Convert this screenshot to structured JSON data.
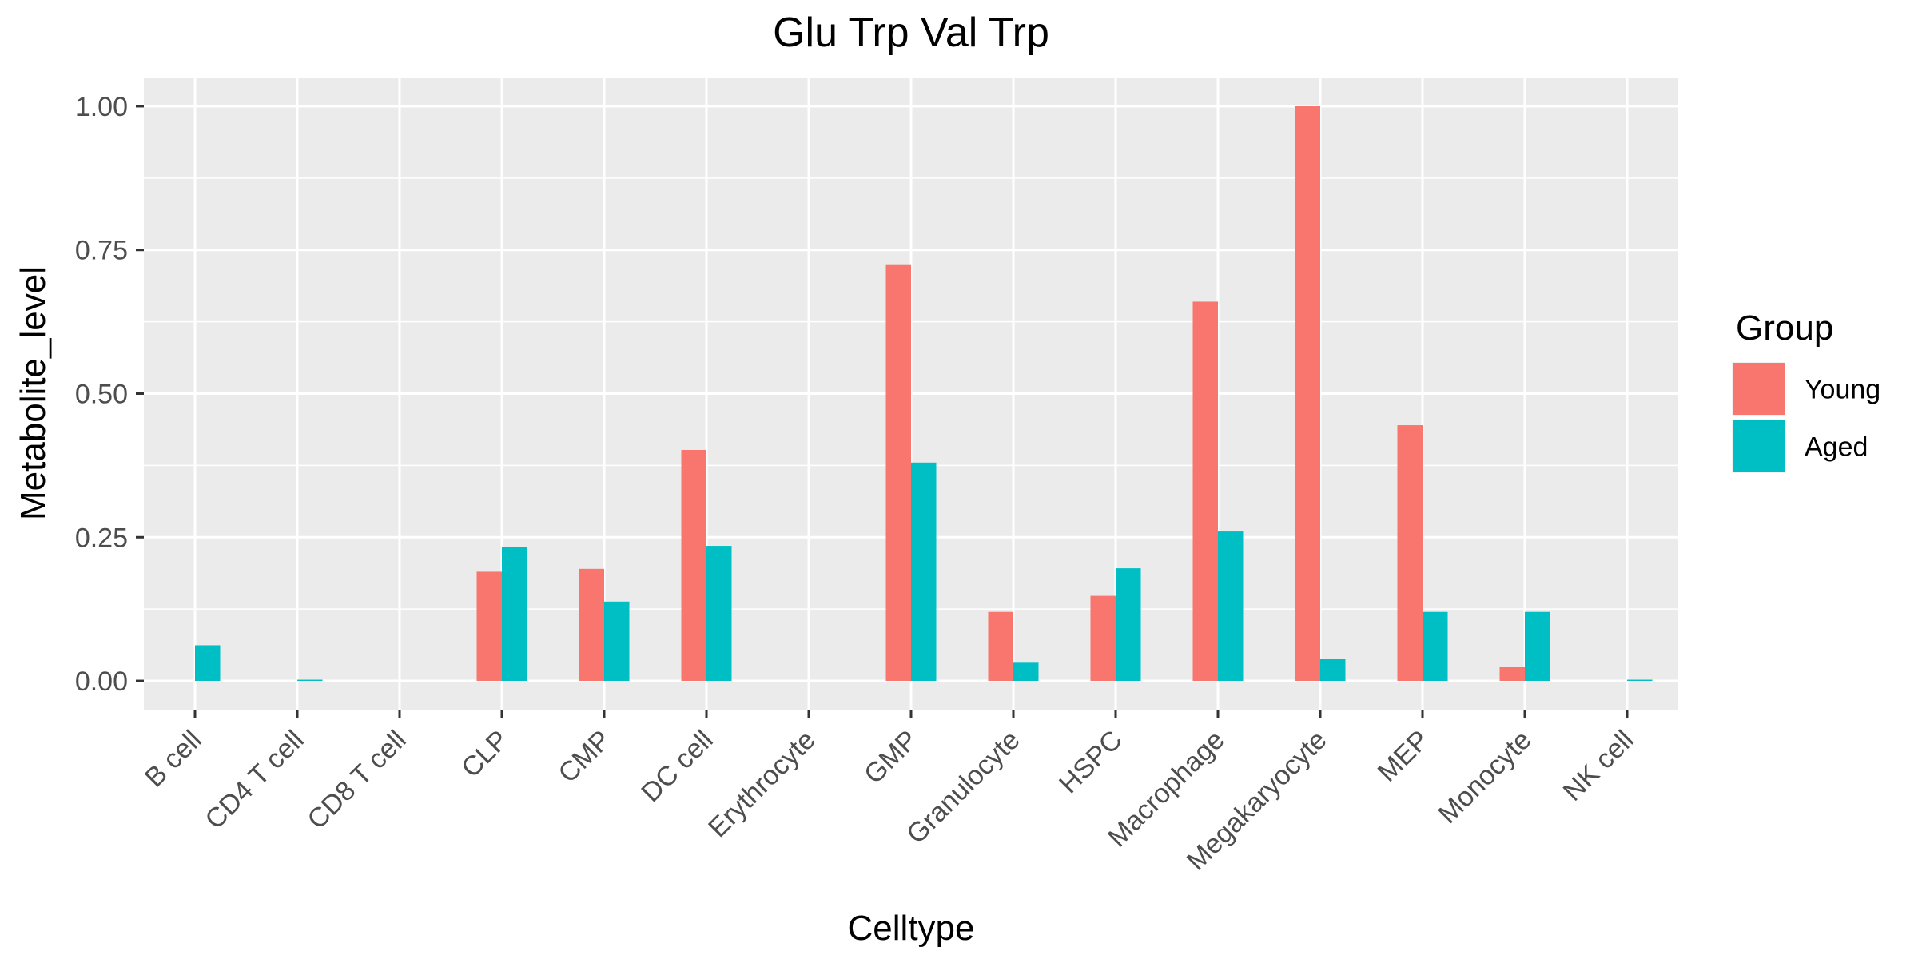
{
  "chart_data": {
    "type": "bar",
    "title": "Glu Trp Val Trp",
    "xlabel": "Celltype",
    "ylabel": "Metabolite_level",
    "ylim": [
      -0.05,
      1.05
    ],
    "yticks": [
      0.0,
      0.25,
      0.5,
      0.75,
      1.0
    ],
    "ytick_labels": [
      "0.00",
      "0.25",
      "0.50",
      "0.75",
      "1.00"
    ],
    "grid": true,
    "legend_position": "right",
    "legend_title": "Group",
    "categories": [
      "B cell",
      "CD4 T cell",
      "CD8 T cell",
      "CLP",
      "CMP",
      "DC cell",
      "Erythrocyte",
      "GMP",
      "Granulocyte",
      "HSPC",
      "Macrophage",
      "Megakaryocyte",
      "MEP",
      "Monocyte",
      "NK cell"
    ],
    "series": [
      {
        "name": "Young",
        "color": "#F8766D",
        "values": [
          0.0,
          0.0,
          0.0,
          0.19,
          0.195,
          0.402,
          0.0,
          0.725,
          0.12,
          0.148,
          0.66,
          1.0,
          0.445,
          0.025,
          0.0
        ]
      },
      {
        "name": "Aged",
        "color": "#00BFC4",
        "values": [
          0.062,
          0.002,
          0.0,
          0.233,
          0.138,
          0.235,
          0.0,
          0.38,
          0.033,
          0.196,
          0.26,
          0.038,
          0.12,
          0.12,
          0.002
        ]
      }
    ]
  }
}
